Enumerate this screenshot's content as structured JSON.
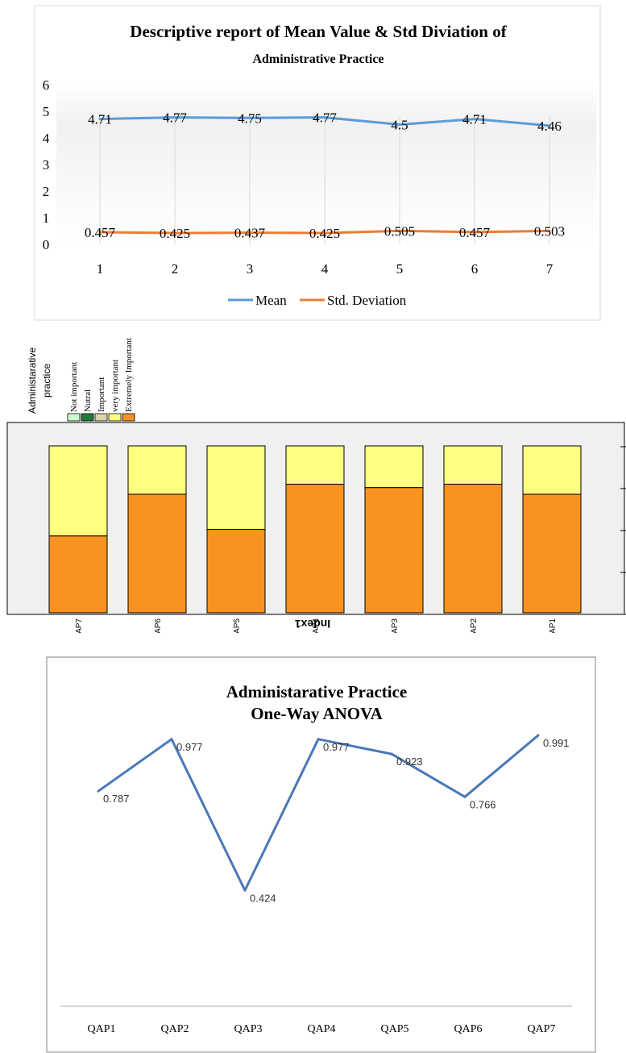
{
  "chart_data": [
    {
      "type": "line",
      "title": "Descriptive report of Mean Value & Std Diviation of",
      "subtitle": "Administrative Practice",
      "categories": [
        "1",
        "2",
        "3",
        "4",
        "5",
        "6",
        "7"
      ],
      "series": [
        {
          "name": "Mean",
          "values": [
            4.71,
            4.77,
            4.75,
            4.77,
            4.5,
            4.71,
            4.46
          ],
          "labels": [
            "4.71",
            "4.77",
            "4.75",
            "4.77",
            "4.5",
            "4.71",
            "4.46"
          ],
          "color": "#5b9bd5"
        },
        {
          "name": "Std. Deviation",
          "values": [
            0.457,
            0.425,
            0.437,
            0.425,
            0.505,
            0.457,
            0.503
          ],
          "labels": [
            "0.457",
            "0.425",
            "0.437",
            "0.425",
            "0.505",
            "0.457",
            "0.503"
          ],
          "color": "#ed7d31"
        }
      ],
      "ylim": [
        0,
        6
      ],
      "yticks": [
        "0",
        "1",
        "2",
        "3",
        "4",
        "5",
        "6"
      ],
      "legend_position": "bottom",
      "grid": "vertical"
    },
    {
      "type": "bar",
      "stacked": true,
      "xlabel": "Index1",
      "legend_title": "Administarative practice",
      "legend": [
        {
          "name": "Not important",
          "color": "#ccffcc"
        },
        {
          "name": "Nutral",
          "color": "#1e7b3a"
        },
        {
          "name": "Important",
          "color": "#d8d3b0"
        },
        {
          "name": "very important",
          "color": "#ffff80"
        },
        {
          "name": "Extremely Important",
          "color": "#f7931e"
        }
      ],
      "legend_position": "top-left",
      "categories": [
        "QAP7",
        "QAP6",
        "QAP5",
        "QAP4",
        "QAP3",
        "QAP2",
        "QAP1"
      ],
      "series": [
        {
          "name": "Extremely Important",
          "values": [
            46,
            71,
            50,
            77,
            75,
            77,
            71
          ],
          "color": "#f7931e"
        },
        {
          "name": "very important",
          "values": [
            54,
            29,
            50,
            23,
            25,
            23,
            29
          ],
          "color": "#ffff80"
        }
      ],
      "ylim": [
        0,
        100
      ]
    },
    {
      "type": "line",
      "title": "Administarative Practice",
      "subtitle": "One-Way ANOVA",
      "categories": [
        "QAP1",
        "QAP2",
        "QAP3",
        "QAP4",
        "QAP5",
        "QAP6",
        "QAP7"
      ],
      "series": [
        {
          "values": [
            0.787,
            0.977,
            0.424,
            0.977,
            0.923,
            0.766,
            0.991
          ],
          "labels": [
            "0.787",
            "0.977",
            "0.424",
            "0.977",
            "0.923",
            "0.766",
            "0.991"
          ],
          "color": "#4a78b8"
        }
      ],
      "ylim": [
        0,
        1.2
      ]
    }
  ]
}
